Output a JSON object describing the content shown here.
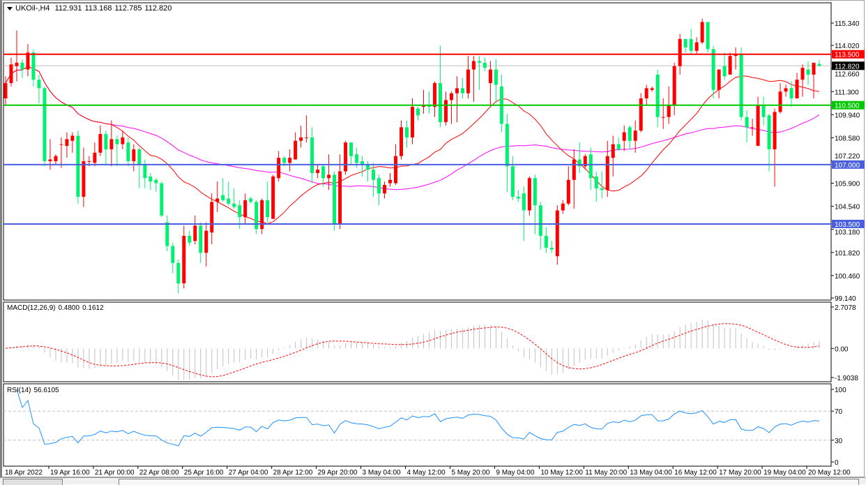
{
  "header": {
    "symbol_timeframe": "UKOil-,H4",
    "open": "112.931",
    "high": "113.168",
    "low": "112.785",
    "close": "112.820"
  },
  "macd_label": {
    "name": "MACD(12,26,9)",
    "main": "0.4800",
    "signal": "0.1612"
  },
  "rsi_label": {
    "name": "RSI(14)",
    "value": "56.6105"
  },
  "chart_data": {
    "type": "candlestick",
    "symbol": "UKOil-",
    "timeframe": "H4",
    "colors": {
      "bull_candle": "#FF0000",
      "bear_candle": "#00F070",
      "ma_fast": "#FF0000",
      "ma_slow": "#FF00FF",
      "macd_histogram": "#C0C0C0",
      "macd_signal": "#FF0000",
      "rsi_line": "#1E90FF"
    },
    "price_range": [
      99.14,
      115.34
    ],
    "price_ticks": [
      "115.340",
      "114.020",
      "112.660",
      "111.300",
      "109.940",
      "108.580",
      "107.220",
      "105.900",
      "104.540",
      "103.180",
      "101.820",
      "100.460",
      "99.140"
    ],
    "time_ticks": [
      "18 Apr 2022",
      "19 Apr 16:00",
      "21 Apr 00:00",
      "22 Apr 08:00",
      "25 Apr 16:00",
      "27 Apr 04:00",
      "28 Apr 12:00",
      "29 Apr 20:00",
      "3 May 04:00",
      "4 May 12:00",
      "5 May 20:00",
      "9 May 04:00",
      "10 May 12:00",
      "11 May 20:00",
      "13 May 04:00",
      "16 May 12:00",
      "17 May 20:00",
      "19 May 04:00",
      "20 May 12:00"
    ],
    "horizontal_levels": [
      {
        "price": 113.5,
        "label": "113.500",
        "color": "#FF0000"
      },
      {
        "price": 110.5,
        "label": "110.500",
        "color": "#00C800"
      },
      {
        "price": 107.0,
        "label": "107.000",
        "color": "#4A5FE0"
      },
      {
        "price": 103.5,
        "label": "103.500",
        "color": "#4A5FE0"
      }
    ],
    "current_price": {
      "price": 112.82,
      "label": "112.820",
      "color": "#000000"
    },
    "ohlc": [
      [
        110.9,
        112.2,
        110.5,
        111.8
      ],
      [
        111.8,
        113.3,
        111.6,
        112.9
      ],
      [
        112.8,
        114.9,
        111.9,
        113.0
      ],
      [
        113.0,
        113.2,
        112.1,
        112.6
      ],
      [
        112.6,
        114.1,
        112.2,
        113.6
      ],
      [
        113.6,
        113.8,
        111.6,
        112.0
      ],
      [
        112.0,
        112.3,
        110.6,
        111.5
      ],
      [
        111.5,
        111.6,
        106.9,
        107.2
      ],
      [
        107.2,
        108.5,
        106.7,
        107.3
      ],
      [
        107.2,
        107.6,
        107.0,
        107.5
      ],
      [
        108.2,
        108.6,
        106.8,
        108.2
      ],
      [
        108.1,
        108.9,
        107.4,
        108.5
      ],
      [
        108.4,
        108.9,
        107.7,
        108.7
      ],
      [
        108.7,
        109.0,
        104.7,
        105.1
      ],
      [
        105.1,
        108.0,
        104.5,
        107.2
      ],
      [
        107.2,
        107.5,
        106.9,
        107.2
      ],
      [
        107.1,
        108.3,
        106.9,
        107.7
      ],
      [
        107.7,
        109.3,
        107.5,
        108.8
      ],
      [
        108.8,
        109.0,
        107.0,
        107.9
      ],
      [
        107.9,
        109.6,
        106.9,
        108.5
      ],
      [
        108.5,
        108.7,
        106.9,
        108.2
      ],
      [
        108.2,
        109.0,
        107.9,
        108.6
      ],
      [
        108.3,
        108.6,
        106.9,
        107.2
      ],
      [
        107.2,
        108.2,
        106.6,
        107.9
      ],
      [
        107.9,
        108.0,
        105.6,
        107.0
      ],
      [
        107.0,
        107.3,
        105.6,
        106.2
      ],
      [
        106.3,
        106.5,
        105.5,
        106.0
      ],
      [
        106.1,
        106.2,
        105.4,
        105.9
      ],
      [
        105.9,
        106.0,
        103.9,
        104.0
      ],
      [
        103.6,
        104.0,
        101.9,
        102.2
      ],
      [
        102.2,
        102.4,
        100.6,
        101.2
      ],
      [
        101.2,
        101.4,
        99.4,
        100.0
      ],
      [
        100.0,
        103.4,
        99.7,
        102.8
      ],
      [
        102.8,
        103.1,
        102.2,
        102.4
      ],
      [
        102.5,
        104.0,
        102.3,
        103.4
      ],
      [
        103.4,
        103.6,
        101.2,
        101.8
      ],
      [
        101.8,
        103.6,
        101.0,
        103.1
      ],
      [
        103.0,
        105.3,
        102.3,
        104.8
      ],
      [
        104.8,
        106.0,
        104.2,
        105.0
      ],
      [
        105.2,
        106.2,
        104.8,
        104.9
      ],
      [
        105.0,
        106.0,
        104.6,
        104.7
      ],
      [
        104.7,
        105.6,
        104.4,
        104.5
      ],
      [
        104.6,
        104.9,
        103.2,
        103.9
      ],
      [
        103.9,
        105.3,
        103.5,
        104.9
      ],
      [
        105.0,
        105.1,
        104.7,
        104.8
      ],
      [
        104.8,
        104.9,
        102.9,
        103.2
      ],
      [
        103.2,
        105.0,
        102.9,
        104.9
      ],
      [
        104.9,
        106.0,
        103.6,
        103.9
      ],
      [
        103.8,
        106.4,
        103.8,
        106.3
      ],
      [
        106.2,
        107.8,
        106.0,
        107.4
      ],
      [
        107.4,
        107.5,
        106.9,
        107.1
      ],
      [
        107.1,
        107.9,
        106.6,
        107.4
      ],
      [
        107.3,
        108.9,
        107.3,
        108.4
      ],
      [
        108.4,
        109.3,
        108.0,
        108.6
      ],
      [
        108.6,
        109.9,
        108.3,
        108.6
      ],
      [
        108.6,
        109.2,
        105.9,
        106.5
      ],
      [
        106.5,
        107.0,
        106.2,
        106.7
      ],
      [
        106.9,
        107.0,
        105.7,
        106.2
      ],
      [
        106.2,
        107.6,
        105.5,
        106.4
      ],
      [
        106.4,
        106.6,
        103.1,
        103.5
      ],
      [
        103.5,
        107.6,
        103.2,
        106.6
      ],
      [
        106.6,
        108.4,
        106.4,
        108.3
      ],
      [
        108.3,
        108.3,
        107.0,
        107.5
      ],
      [
        107.6,
        108.0,
        106.8,
        107.1
      ],
      [
        107.2,
        107.5,
        106.3,
        107.0
      ],
      [
        107.0,
        107.2,
        106.0,
        106.7
      ],
      [
        106.7,
        107.1,
        105.1,
        106.1
      ],
      [
        106.2,
        106.4,
        104.6,
        105.3
      ],
      [
        105.3,
        106.0,
        105.0,
        105.8
      ],
      [
        105.9,
        106.5,
        105.7,
        106.1
      ],
      [
        105.9,
        108.2,
        105.8,
        107.5
      ],
      [
        107.5,
        109.6,
        107.3,
        109.2
      ],
      [
        109.2,
        109.6,
        108.0,
        108.6
      ],
      [
        108.6,
        110.9,
        108.2,
        110.4
      ],
      [
        110.3,
        110.4,
        109.6,
        109.9
      ],
      [
        110.4,
        111.4,
        110.0,
        110.5
      ],
      [
        110.5,
        111.3,
        110.0,
        110.4
      ],
      [
        110.4,
        111.9,
        109.8,
        111.8
      ],
      [
        111.8,
        114.0,
        109.2,
        109.5
      ],
      [
        109.5,
        111.3,
        109.3,
        110.8
      ],
      [
        110.8,
        111.3,
        109.4,
        111.2
      ],
      [
        111.2,
        112.2,
        109.5,
        111.5
      ],
      [
        111.5,
        112.1,
        110.9,
        111.2
      ],
      [
        111.2,
        113.4,
        110.9,
        112.6
      ],
      [
        112.6,
        113.4,
        110.7,
        113.1
      ],
      [
        113.1,
        113.4,
        111.4,
        113.0
      ],
      [
        113.0,
        113.3,
        112.5,
        112.7
      ],
      [
        111.8,
        113.1,
        110.5,
        112.6
      ],
      [
        112.6,
        113.2,
        110.6,
        111.7
      ],
      [
        111.6,
        112.3,
        108.9,
        109.4
      ],
      [
        109.4,
        110.0,
        105.4,
        106.9
      ],
      [
        106.9,
        107.5,
        104.9,
        105.1
      ],
      [
        105.1,
        105.5,
        104.8,
        105.0
      ],
      [
        105.3,
        105.7,
        102.5,
        104.3
      ],
      [
        104.3,
        106.3,
        104.0,
        106.2
      ],
      [
        106.2,
        106.4,
        102.9,
        104.6
      ],
      [
        104.6,
        104.8,
        102.0,
        102.8
      ],
      [
        102.8,
        103.3,
        101.8,
        102.1
      ],
      [
        102.1,
        102.5,
        101.8,
        102.0
      ],
      [
        101.6,
        104.6,
        101.1,
        104.3
      ],
      [
        104.3,
        104.9,
        104.1,
        104.7
      ],
      [
        104.7,
        106.9,
        104.6,
        106.1
      ],
      [
        106.1,
        107.9,
        104.4,
        107.3
      ],
      [
        107.3,
        108.3,
        106.5,
        106.9
      ],
      [
        106.9,
        107.6,
        106.7,
        107.5
      ],
      [
        107.6,
        108.0,
        105.5,
        106.2
      ],
      [
        106.3,
        106.6,
        104.8,
        105.6
      ],
      [
        105.6,
        106.6,
        105.0,
        105.5
      ],
      [
        105.5,
        108.4,
        105.1,
        107.5
      ],
      [
        107.4,
        108.7,
        106.3,
        108.2
      ],
      [
        108.2,
        108.6,
        107.8,
        107.9
      ],
      [
        108.4,
        109.3,
        107.8,
        108.9
      ],
      [
        109.2,
        109.3,
        107.9,
        108.4
      ],
      [
        108.4,
        109.6,
        107.7,
        109.0
      ],
      [
        109.0,
        111.2,
        108.9,
        110.9
      ],
      [
        110.9,
        111.7,
        110.5,
        111.5
      ],
      [
        111.4,
        111.6,
        111.3,
        111.5
      ],
      [
        112.3,
        112.6,
        109.2,
        109.8
      ],
      [
        109.8,
        110.9,
        109.1,
        109.8
      ],
      [
        109.8,
        111.6,
        109.4,
        110.5
      ],
      [
        110.5,
        113.0,
        109.9,
        112.8
      ],
      [
        112.8,
        114.7,
        112.3,
        114.4
      ],
      [
        114.4,
        114.4,
        113.6,
        113.9
      ],
      [
        114.4,
        115.0,
        113.5,
        113.7
      ],
      [
        113.7,
        114.5,
        113.5,
        114.2
      ],
      [
        114.2,
        115.6,
        114.1,
        115.4
      ],
      [
        115.4,
        115.4,
        113.6,
        113.8
      ],
      [
        113.8,
        114.0,
        110.9,
        111.4
      ],
      [
        111.4,
        112.6,
        110.9,
        112.6
      ],
      [
        112.8,
        113.6,
        112.0,
        112.2
      ],
      [
        112.3,
        113.6,
        112.3,
        113.4
      ],
      [
        113.4,
        113.9,
        112.6,
        113.5
      ],
      [
        113.5,
        113.9,
        109.6,
        109.8
      ],
      [
        109.8,
        110.2,
        108.3,
        109.2
      ],
      [
        109.2,
        109.7,
        108.7,
        109.2
      ],
      [
        108.1,
        111.0,
        108.1,
        110.5
      ],
      [
        110.5,
        111.0,
        109.3,
        109.8
      ],
      [
        109.9,
        110.0,
        106.6,
        107.9
      ],
      [
        107.9,
        110.3,
        105.7,
        110.1
      ],
      [
        110.1,
        111.8,
        110.0,
        111.3
      ],
      [
        111.3,
        111.7,
        111.0,
        111.5
      ],
      [
        111.5,
        111.9,
        110.4,
        110.9
      ],
      [
        110.9,
        112.4,
        110.9,
        112.0
      ],
      [
        112.0,
        112.9,
        111.0,
        112.7
      ],
      [
        112.6,
        113.1,
        111.7,
        112.3
      ],
      [
        112.3,
        113.0,
        110.9,
        113.0
      ],
      [
        112.931,
        113.168,
        112.785,
        112.82
      ]
    ],
    "macd": {
      "range": [
        -1.9038,
        2.7078
      ],
      "ticks": [
        "2.7078",
        "0.00",
        "-1.9038"
      ]
    },
    "rsi": {
      "range": [
        0,
        100
      ],
      "ticks": [
        "100",
        "70",
        "30",
        "0"
      ],
      "levels": [
        70,
        30
      ]
    }
  }
}
